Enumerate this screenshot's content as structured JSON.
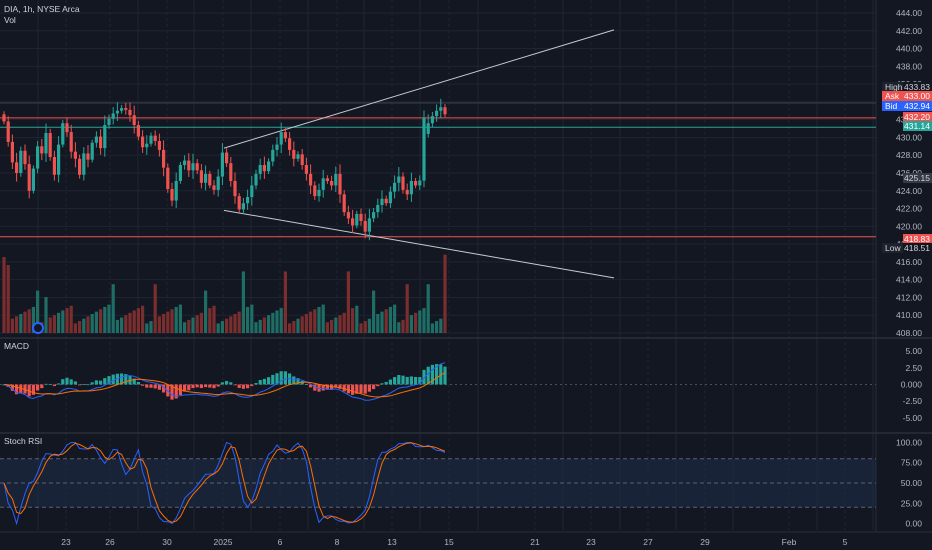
{
  "header": {
    "symbol_line": "DIA, 1h, NYSE Arca",
    "vol_label": "Vol"
  },
  "panes": {
    "macd_label": "MACD",
    "stoch_label": "Stoch RSI"
  },
  "colors": {
    "background": "#131722",
    "grid": "#1f2431",
    "up": "#26a69a",
    "down": "#ef5350",
    "vol_up": "#1f6e66",
    "vol_down": "#7a2e2e",
    "trendline": "#c8cad0",
    "support_line": "#ef5350",
    "bid_line": "#26a69a",
    "macd_line": "#2962ff",
    "signal_line": "#ff6d00",
    "stoch_k": "#2962ff",
    "stoch_d": "#ff6d00",
    "stoch_band": "#1e2d48"
  },
  "chart_data": {
    "type": "candlestick",
    "price_axis": {
      "ticks": [
        "444.00",
        "442.00",
        "440.00",
        "438.00",
        "436.00",
        "434.00",
        "432.00",
        "430.00",
        "428.00",
        "426.00",
        "424.00",
        "422.00",
        "420.00",
        "418.00",
        "416.00",
        "414.00",
        "412.00",
        "410.00",
        "408.00"
      ]
    },
    "price_tags": [
      {
        "key": "high",
        "label": "High",
        "value": "433.83"
      },
      {
        "key": "ask",
        "label": "Ask",
        "value": "433.00"
      },
      {
        "key": "bid",
        "label": "Bid",
        "value": "432.94"
      },
      {
        "key": "last",
        "label": "",
        "value": "432.20"
      },
      {
        "key": "line",
        "label": "",
        "value": "431.14"
      },
      {
        "key": "mid",
        "label": "",
        "value": "425.15"
      },
      {
        "key": "support",
        "label": "",
        "value": "418.83"
      },
      {
        "key": "low",
        "label": "Low",
        "value": "418.51"
      }
    ],
    "time_axis": [
      "23",
      "26",
      "30",
      "2025",
      "6",
      "8",
      "13",
      "15",
      "21",
      "23",
      "27",
      "29",
      "Feb",
      "5"
    ],
    "closes": [
      431.8,
      429.5,
      427.2,
      426.0,
      428.5,
      427.0,
      424.0,
      426.5,
      429.0,
      428.2,
      430.5,
      427.8,
      425.8,
      429.2,
      431.6,
      430.6,
      428.4,
      427.6,
      425.8,
      428.2,
      427.5,
      429.4,
      430.1,
      428.8,
      431.4,
      432.1,
      432.7,
      433.0,
      433.3,
      433.1,
      432.5,
      431.4,
      430.1,
      428.9,
      429.3,
      430.2,
      429.6,
      428.6,
      426.6,
      424.2,
      422.9,
      425.1,
      426.9,
      427.4,
      426.3,
      427.1,
      426.3,
      424.9,
      425.9,
      424.6,
      424.1,
      425.6,
      428.3,
      427.1,
      425.1,
      423.4,
      421.9,
      422.6,
      423.3,
      424.6,
      425.9,
      426.9,
      426.2,
      427.3,
      428.6,
      429.2,
      430.6,
      429.9,
      428.6,
      427.6,
      428.1,
      426.9,
      425.9,
      424.6,
      423.4,
      424.1,
      425.4,
      425.1,
      424.6,
      425.9,
      423.6,
      421.6,
      420.9,
      420.1,
      421.4,
      420.6,
      419.4,
      420.9,
      421.6,
      422.4,
      423.1,
      422.6,
      423.9,
      424.9,
      425.6,
      424.1,
      423.6,
      425.1,
      424.6,
      425.15,
      432.2,
      431.6,
      432.4,
      433.0,
      433.4,
      432.6
    ],
    "volume_scale": "relative 0-1",
    "trendlines": [
      {
        "name": "upper-channel",
        "from": [
          45,
          428.8
        ],
        "to": [
          125,
          442.1
        ]
      },
      {
        "name": "lower-channel",
        "from": [
          45,
          421.8
        ],
        "to": [
          125,
          414.2
        ]
      }
    ],
    "horizontal_lines": [
      {
        "name": "support",
        "price": 418.83
      },
      {
        "name": "resistance-bid",
        "price": 431.14
      },
      {
        "name": "last-price",
        "price": 432.2
      }
    ],
    "macd": {
      "axis_ticks": [
        "5.00",
        "2.50",
        "0.000",
        "-2.50",
        "-5.00"
      ],
      "ylim": [
        -6.5,
        6.5
      ]
    },
    "stoch_rsi": {
      "axis_ticks": [
        "100.00",
        "75.00",
        "50.00",
        "25.00",
        "0.00"
      ],
      "ylim": [
        -8,
        108
      ],
      "band": [
        20,
        80
      ]
    }
  }
}
